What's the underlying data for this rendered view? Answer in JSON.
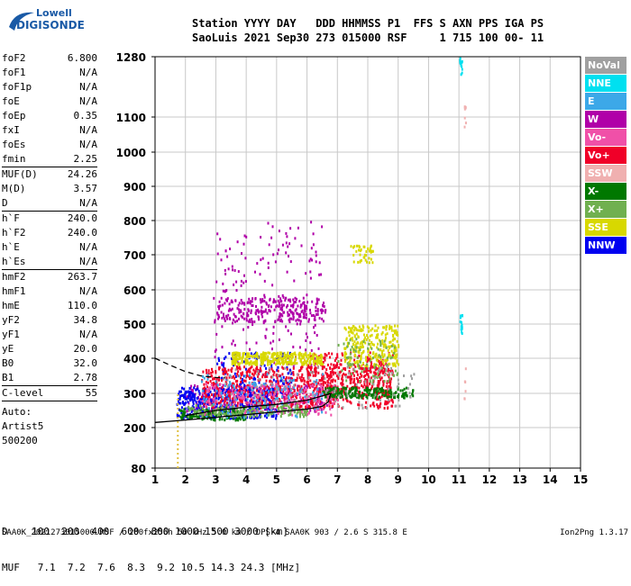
{
  "logo": {
    "line1": "Lowell",
    "line2": "DIGISONDE"
  },
  "header": {
    "line1": "Station YYYY DAY   DDD HHMMSS P1  FFS S AXN PPS IGA PS",
    "line2": "SaoLuis 2021 Sep30 273 015000 RSF     1 715 100 00- 11"
  },
  "params": {
    "group1": [
      {
        "k": "foF2",
        "v": "6.800"
      },
      {
        "k": "foF1",
        "v": "N/A"
      },
      {
        "k": "foF1p",
        "v": "N/A"
      },
      {
        "k": "foE",
        "v": "N/A"
      },
      {
        "k": "foEp",
        "v": "0.35"
      },
      {
        "k": "fxI",
        "v": "N/A"
      },
      {
        "k": "foEs",
        "v": "N/A"
      },
      {
        "k": "fmin",
        "v": "2.25"
      }
    ],
    "group2": [
      {
        "k": "MUF(D)",
        "v": "24.26"
      },
      {
        "k": "M(D)",
        "v": "3.57"
      },
      {
        "k": "D",
        "v": "N/A"
      }
    ],
    "group3": [
      {
        "k": "h`F",
        "v": "240.0"
      },
      {
        "k": "h`F2",
        "v": "240.0"
      },
      {
        "k": "h`E",
        "v": "N/A"
      },
      {
        "k": "h`Es",
        "v": "N/A"
      }
    ],
    "group4": [
      {
        "k": "hmF2",
        "v": "263.7"
      },
      {
        "k": "hmF1",
        "v": "N/A"
      },
      {
        "k": "hmE",
        "v": "110.0"
      },
      {
        "k": "yF2",
        "v": "34.8"
      },
      {
        "k": "yF1",
        "v": "N/A"
      },
      {
        "k": "yE",
        "v": "20.0"
      },
      {
        "k": "B0",
        "v": "32.0"
      },
      {
        "k": "B1",
        "v": "2.78"
      }
    ],
    "clevel": {
      "k": "C-level",
      "v": "55"
    },
    "auto": [
      "Auto:",
      "Artist5",
      "500200"
    ]
  },
  "bottom": {
    "row1": "D    100  200  400  600  800 1000 1500 3000 [km]",
    "row2": "MUF   7.1  7.2  7.6  8.3  9.2 10.5 14.3 24.3 [MHz]"
  },
  "footer": "SAA0K_2021273015000.RSF / 280fx256h 50 kHz 5.0 km / DPS-4 SAA0K 903 / 2.6 S 315.8 E",
  "version": "Ion2Png 1.3.17",
  "legend": [
    {
      "label": "NoVal",
      "color": "#a0a0a0"
    },
    {
      "label": "NNE",
      "color": "#00e0f0"
    },
    {
      "label": "E",
      "color": "#3ca8e8"
    },
    {
      "label": "W",
      "color": "#b000a8"
    },
    {
      "label": "Vo-",
      "color": "#f050a8"
    },
    {
      "label": "Vo+",
      "color": "#f00028"
    },
    {
      "label": "SSW",
      "color": "#f0b0b0"
    },
    {
      "label": "X-",
      "color": "#007800"
    },
    {
      "label": "X+",
      "color": "#70b050"
    },
    {
      "label": "SSE",
      "color": "#d8d800"
    },
    {
      "label": "NNW",
      "color": "#0000f0"
    }
  ],
  "chart_data": {
    "type": "scatter",
    "x_ticks": [
      "1",
      "2",
      "3",
      "4",
      "5",
      "6",
      "7",
      "8",
      "9",
      "10",
      "11",
      "12",
      "13",
      "14",
      "15"
    ],
    "y_ticks": [
      "80",
      "200",
      "300",
      "400",
      "500",
      "600",
      "700",
      "800",
      "900",
      "1000",
      "1100",
      "1280"
    ],
    "xlim": [
      1,
      15
    ],
    "y_tick_values": [
      80,
      200,
      300,
      400,
      500,
      600,
      700,
      800,
      900,
      1000,
      1100,
      1280
    ],
    "grid": true,
    "series": [
      {
        "name": "W",
        "color": "#b000a8",
        "clusters": [
          {
            "x": [
              3.0,
              6.6
            ],
            "y": [
              510,
              580
            ],
            "n": 260
          },
          {
            "x": [
              2.9,
              6.5
            ],
            "y": [
              380,
              800
            ],
            "n": 180
          },
          {
            "x": [
              2.0,
              6.8
            ],
            "y": [
              250,
              330
            ],
            "n": 300
          }
        ]
      },
      {
        "name": "NNW",
        "color": "#0000f0",
        "clusters": [
          {
            "x": [
              1.7,
              5.0
            ],
            "y": [
              230,
              320
            ],
            "n": 420
          },
          {
            "x": [
              3.0,
              5.5
            ],
            "y": [
              300,
              420
            ],
            "n": 120
          }
        ]
      },
      {
        "name": "Vo+",
        "color": "#f00028",
        "clusters": [
          {
            "x": [
              2.5,
              8.8
            ],
            "y": [
              260,
              380
            ],
            "n": 700
          },
          {
            "x": [
              6.0,
              8.8
            ],
            "y": [
              300,
              420
            ],
            "n": 250
          }
        ]
      },
      {
        "name": "Vo-",
        "color": "#f050a8",
        "clusters": [
          {
            "x": [
              2.5,
              7.0
            ],
            "y": [
              240,
              330
            ],
            "n": 250
          }
        ]
      },
      {
        "name": "SSE",
        "color": "#d8d800",
        "clusters": [
          {
            "x": [
              3.5,
              6.5
            ],
            "y": [
              385,
              420
            ],
            "n": 320
          },
          {
            "x": [
              7.2,
              9.0
            ],
            "y": [
              380,
              500
            ],
            "n": 260
          },
          {
            "x": [
              7.4,
              8.2
            ],
            "y": [
              680,
              730
            ],
            "n": 40
          }
        ]
      },
      {
        "name": "X-",
        "color": "#007800",
        "clusters": [
          {
            "x": [
              6.5,
              9.5
            ],
            "y": [
              290,
              320
            ],
            "n": 200
          },
          {
            "x": [
              1.8,
              4.0
            ],
            "y": [
              225,
              260
            ],
            "n": 120
          }
        ]
      },
      {
        "name": "X+",
        "color": "#70b050",
        "clusters": [
          {
            "x": [
              2.0,
              6.0
            ],
            "y": [
              235,
              270
            ],
            "n": 160
          },
          {
            "x": [
              7.0,
              9.0
            ],
            "y": [
              330,
              460
            ],
            "n": 80
          }
        ]
      },
      {
        "name": "E",
        "color": "#3ca8e8",
        "clusters": [
          {
            "x": [
              2.5,
              6.5
            ],
            "y": [
              230,
              360
            ],
            "n": 120
          }
        ]
      },
      {
        "name": "NNE",
        "color": "#00e0f0",
        "clusters": [
          {
            "x": [
              11.0,
              11.1
            ],
            "y": [
              1230,
              1280
            ],
            "n": 12
          },
          {
            "x": [
              11.0,
              11.1
            ],
            "y": [
              470,
              530
            ],
            "n": 14
          }
        ]
      },
      {
        "name": "SSW",
        "color": "#f0b0b0",
        "clusters": [
          {
            "x": [
              11.15,
              11.2
            ],
            "y": [
              1060,
              1150
            ],
            "n": 8
          },
          {
            "x": [
              11.15,
              11.2
            ],
            "y": [
              280,
              400
            ],
            "n": 6
          }
        ]
      },
      {
        "name": "NoVal",
        "color": "#a0a0a0",
        "clusters": [
          {
            "x": [
              3.0,
              9.5
            ],
            "y": [
              260,
              380
            ],
            "n": 120
          }
        ]
      }
    ],
    "trace_solid": {
      "x": [
        1.0,
        2.0,
        3.0,
        4.0,
        5.0,
        6.0,
        6.5,
        6.7,
        6.78
      ],
      "y": [
        215,
        222,
        230,
        238,
        246,
        254,
        262,
        275,
        300
      ]
    },
    "trace_dashed": {
      "x": [
        1.0,
        1.5,
        2.0,
        2.5,
        3.0,
        3.3
      ],
      "y": [
        400,
        380,
        362,
        350,
        345,
        344
      ]
    },
    "trace_solid2": {
      "x": [
        2.0,
        3.0,
        4.0,
        5.0,
        6.0,
        6.8
      ],
      "y": [
        235,
        250,
        260,
        268,
        280,
        300
      ]
    },
    "spread_line": {
      "x": 1.75,
      "y": [
        80,
        300
      ]
    }
  }
}
